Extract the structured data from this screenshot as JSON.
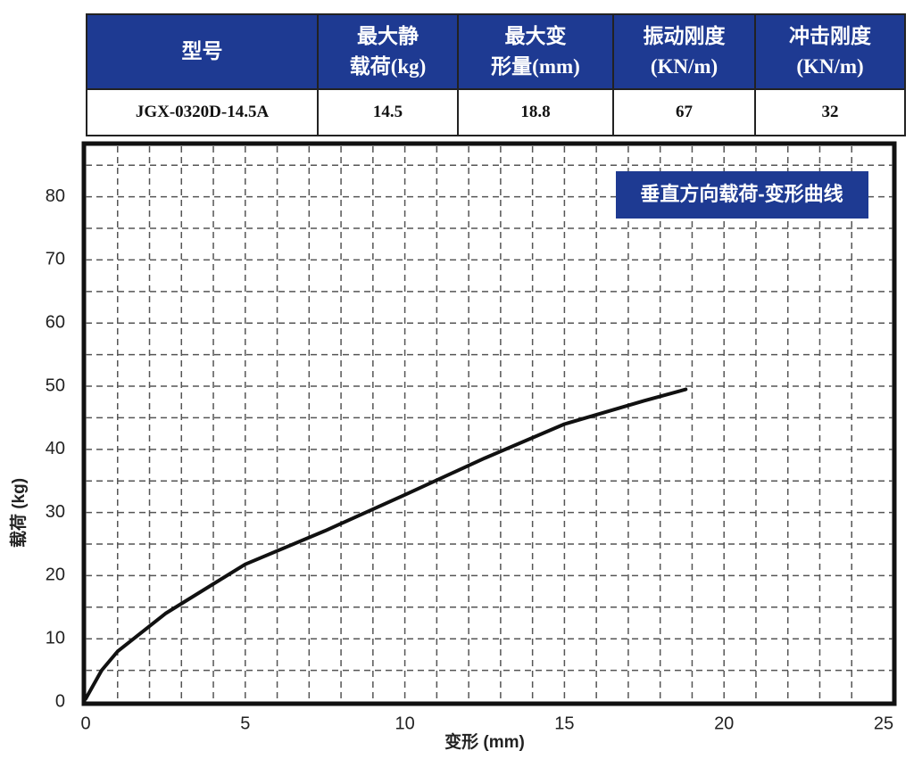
{
  "table": {
    "header": [
      [
        "型号"
      ],
      [
        "最大静",
        "载荷(kg)"
      ],
      [
        "最大变",
        "形量(mm)"
      ],
      [
        "振动刚度",
        "(KN/m)"
      ],
      [
        "冲击刚度",
        "(KN/m)"
      ]
    ],
    "rows": [
      [
        "JGX-0320D-14.5A",
        "14.5",
        "18.8",
        "67",
        "32"
      ]
    ]
  },
  "chart_data": {
    "type": "line",
    "title": "垂直方向载荷-变形曲线",
    "x_label": "变形 (mm)",
    "y_label": "载荷 (kg)",
    "xlim": [
      0,
      25
    ],
    "ylim": [
      0,
      88
    ],
    "xticks": [
      0,
      5,
      10,
      15,
      20,
      25
    ],
    "yticks": [
      0,
      10,
      20,
      30,
      40,
      50,
      60,
      70,
      80
    ],
    "grid": true,
    "series": [
      {
        "color": "#111111",
        "x": [
          0,
          0.5,
          1,
          2.5,
          5,
          7.5,
          10,
          12.5,
          15,
          17.5,
          18.8
        ],
        "values": [
          0.5,
          5,
          8,
          14,
          21.8,
          27.1,
          32.8,
          38.6,
          44,
          47.7,
          49.5
        ]
      }
    ]
  }
}
